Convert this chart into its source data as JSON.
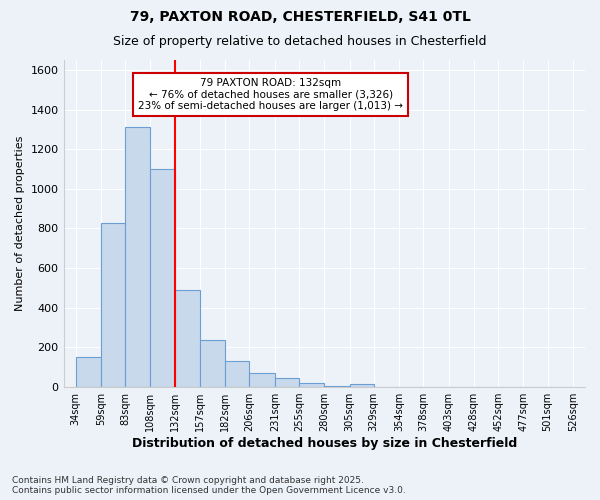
{
  "title_line1": "79, PAXTON ROAD, CHESTERFIELD, S41 0TL",
  "title_line2": "Size of property relative to detached houses in Chesterfield",
  "xlabel": "Distribution of detached houses by size in Chesterfield",
  "ylabel": "Number of detached properties",
  "bar_color": "#c9d9ec",
  "bar_edge_color": "#6b9fd4",
  "categories": [
    "34sqm",
    "59sqm",
    "83sqm",
    "108sqm",
    "132sqm",
    "157sqm",
    "182sqm",
    "206sqm",
    "231sqm",
    "255sqm",
    "280sqm",
    "305sqm",
    "329sqm",
    "354sqm",
    "378sqm",
    "403sqm",
    "428sqm",
    "452sqm",
    "477sqm",
    "501sqm",
    "526sqm"
  ],
  "x_tick_positions": [
    34,
    59,
    83,
    108,
    132,
    157,
    182,
    206,
    231,
    255,
    280,
    305,
    329,
    354,
    378,
    403,
    428,
    452,
    477,
    501,
    526
  ],
  "bar_heights": [
    150,
    830,
    1310,
    1100,
    490,
    235,
    130,
    70,
    45,
    20,
    5,
    15,
    0,
    0,
    0,
    0,
    0,
    0,
    0,
    0
  ],
  "red_line_x": 132,
  "ylim": [
    0,
    1650
  ],
  "yticks": [
    0,
    200,
    400,
    600,
    800,
    1000,
    1200,
    1400,
    1600
  ],
  "annotation_text": "79 PAXTON ROAD: 132sqm\n← 76% of detached houses are smaller (3,326)\n23% of semi-detached houses are larger (1,013) →",
  "annotation_box_color": "#ffffff",
  "annotation_box_edge": "#cc0000",
  "background_color": "#edf2f9",
  "grid_color": "#ffffff",
  "footer_line1": "Contains HM Land Registry data © Crown copyright and database right 2025.",
  "footer_line2": "Contains public sector information licensed under the Open Government Licence v3.0."
}
